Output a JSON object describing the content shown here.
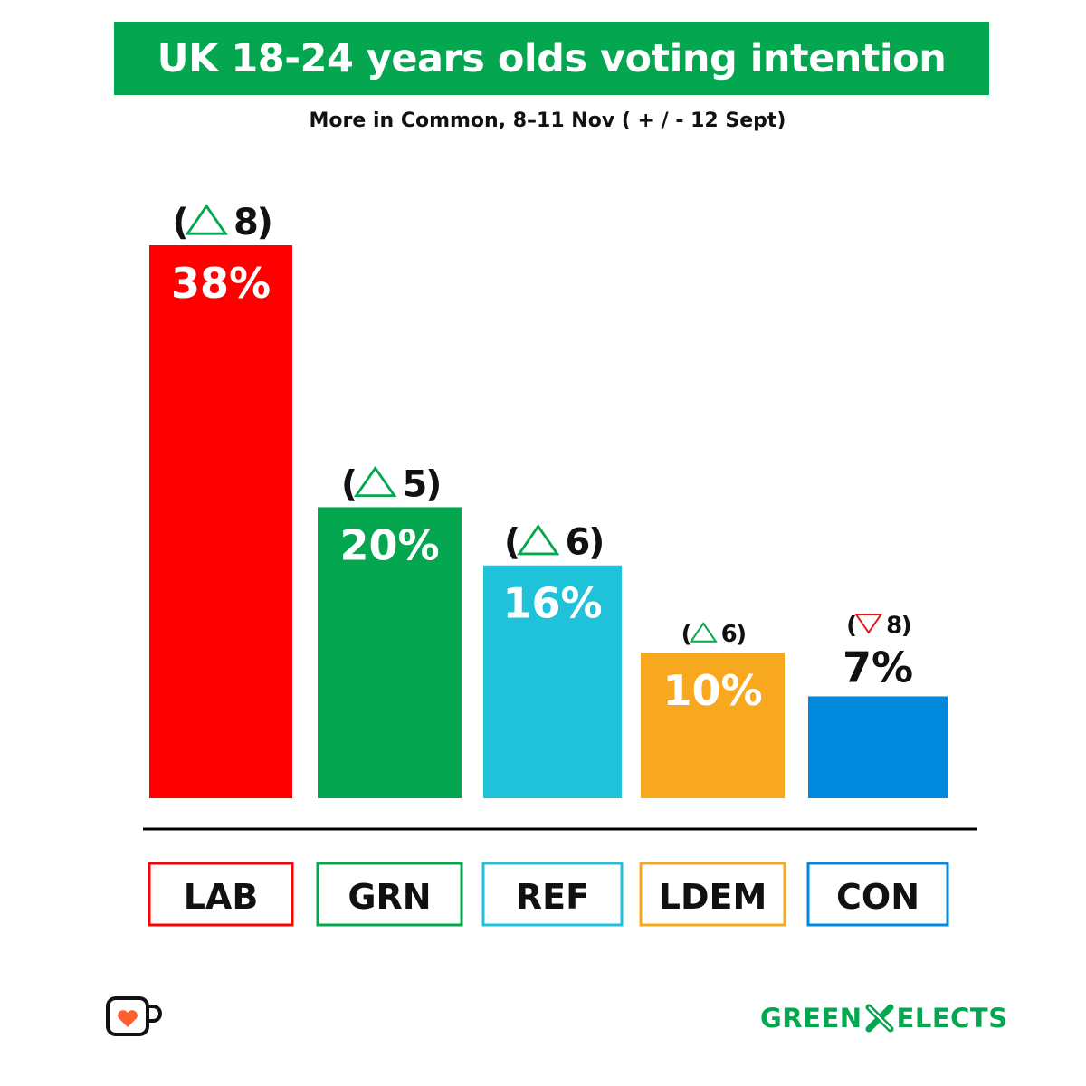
{
  "title": "UK 18-24 years olds voting intention",
  "subtitle": "More in Common, 8–11 Nov ( + / - 12 Sept)",
  "chart_data": {
    "type": "bar",
    "title": "UK 18-24 years olds voting intention",
    "subtitle": "More in Common, 8–11 Nov ( + / - 12 Sept)",
    "categories": [
      "LAB",
      "GRN",
      "REF",
      "LDEM",
      "CON"
    ],
    "values": [
      38,
      20,
      16,
      10,
      7
    ],
    "value_labels": [
      "38%",
      "20%",
      "16%",
      "10%",
      "7%"
    ],
    "change_numbers": [
      "8",
      "5",
      "6",
      "6",
      "8"
    ],
    "change_direction": [
      "up",
      "up",
      "up",
      "up",
      "down"
    ],
    "colors": [
      "#FF0000",
      "#05A650",
      "#1FC2D9",
      "#F7A81E",
      "#0089DD"
    ],
    "up_color": "#05A650",
    "down_color": "#E8141B",
    "ylim": [
      0,
      38
    ],
    "xlabel": "",
    "ylabel": "",
    "grid": false
  },
  "footer": {
    "brand_left": "GREEN",
    "brand_right": "ELECTS",
    "brand_color": "#05A650",
    "cup_icon": "ko-fi-cup-icon"
  }
}
